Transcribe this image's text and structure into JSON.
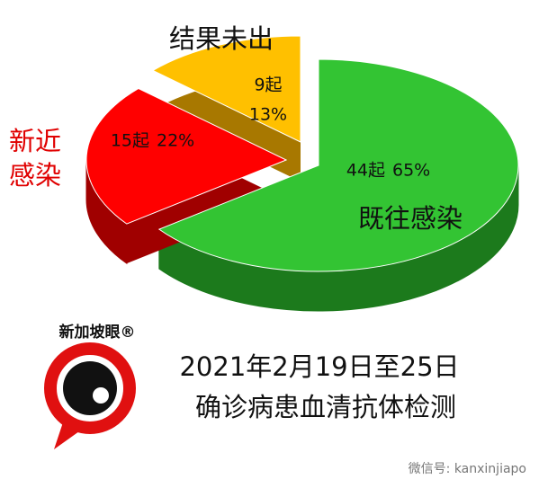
{
  "chart_data": {
    "type": "pie3d",
    "categories": [
      "既往感染",
      "新近感染",
      "结果未出"
    ],
    "values": [
      44,
      15,
      9
    ],
    "value_labels": [
      "44起",
      "15起",
      "9起"
    ],
    "shares": [
      {
        "value": 65,
        "label": "65%"
      },
      {
        "value": 22,
        "label": "22%"
      },
      {
        "value": 13,
        "label": "13%"
      }
    ],
    "colors": [
      "#33c433",
      "#ff0000",
      "#ffc000"
    ],
    "subtitle": [
      "2021年2月19日至25日",
      "确诊病患血清抗体检测"
    ]
  },
  "logo_text": "新加坡眼®",
  "watermark": "微信号: kanxinjiapo"
}
